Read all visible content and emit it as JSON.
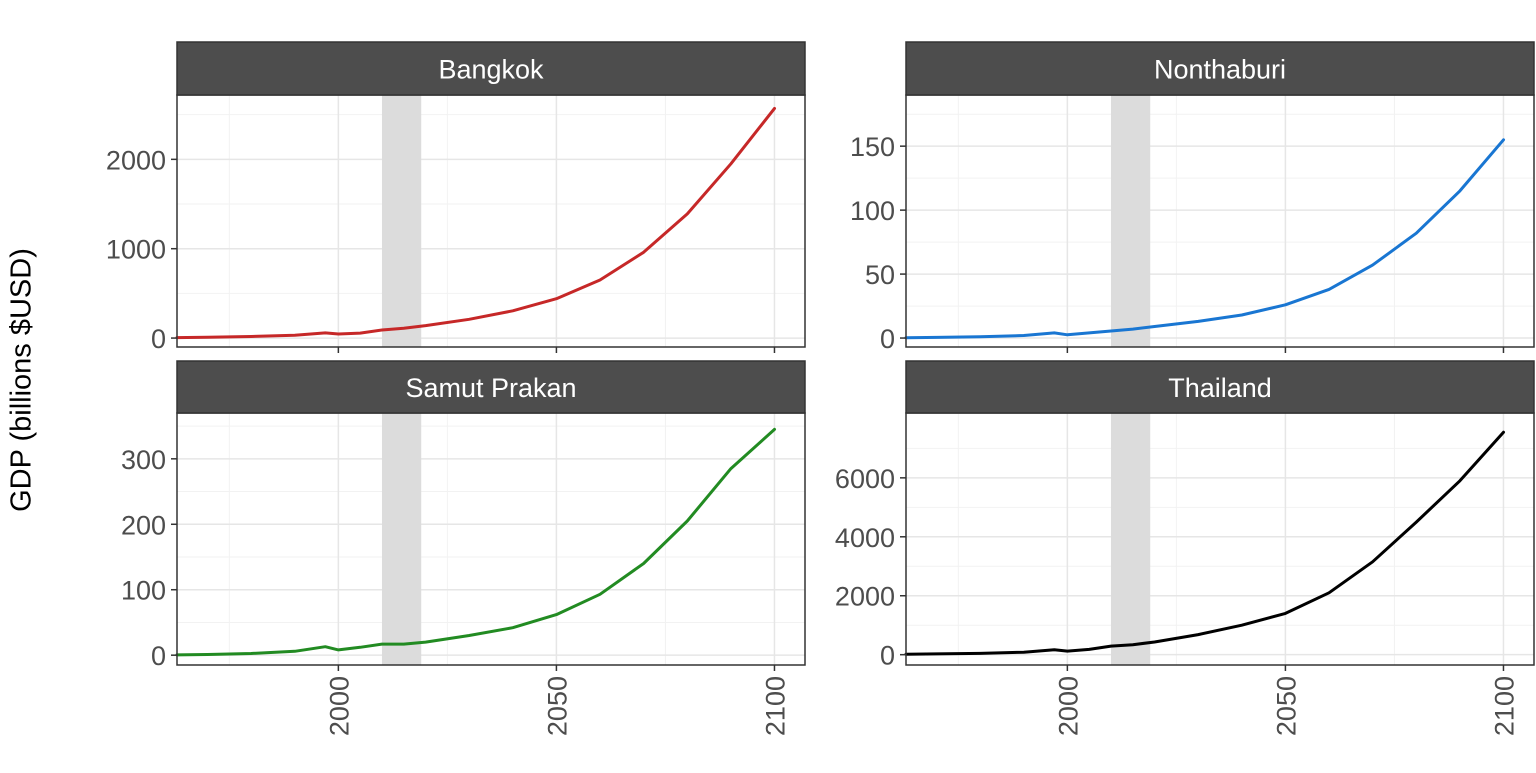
{
  "chart_data": {
    "type": "line",
    "ylabel": "GDP (billions $USD)",
    "xlim": [
      1963,
      2107
    ],
    "x_ticks": [
      2000,
      2050,
      2100
    ],
    "x_tick_labels": [
      "2000",
      "2050",
      "2100"
    ],
    "highlight_band": [
      2010,
      2019
    ],
    "grid": true,
    "facets": [
      {
        "name": "Bangkok",
        "color": "#C62828",
        "ylim": [
          -100,
          2720
        ],
        "y_ticks": [
          0,
          1000,
          2000
        ],
        "y_tick_labels": [
          "0",
          "1000",
          "2000"
        ],
        "series": {
          "x": [
            1963,
            1970,
            1980,
            1990,
            1997,
            2000,
            2005,
            2010,
            2015,
            2020,
            2030,
            2040,
            2050,
            2060,
            2070,
            2080,
            2090,
            2100
          ],
          "values": [
            5,
            9,
            17,
            32,
            58,
            45,
            55,
            90,
            110,
            140,
            210,
            305,
            440,
            650,
            960,
            1390,
            1950,
            2570
          ]
        }
      },
      {
        "name": "Nonthaburi",
        "color": "#1976D2",
        "ylim": [
          -7,
          190
        ],
        "y_ticks": [
          0,
          50,
          100,
          150
        ],
        "y_tick_labels": [
          "0",
          "50",
          "100",
          "150"
        ],
        "series": {
          "x": [
            1963,
            1970,
            1980,
            1990,
            1997,
            2000,
            2005,
            2010,
            2015,
            2020,
            2030,
            2040,
            2050,
            2060,
            2070,
            2080,
            2090,
            2100
          ],
          "values": [
            0.3,
            0.5,
            1,
            2,
            4,
            2.5,
            4,
            5.5,
            7,
            9,
            13,
            18,
            26,
            38,
            57,
            82,
            115,
            155
          ]
        }
      },
      {
        "name": "Samut Prakan",
        "color": "#228B22",
        "ylim": [
          -15,
          370
        ],
        "y_ticks": [
          0,
          100,
          200,
          300
        ],
        "y_tick_labels": [
          "0",
          "100",
          "200",
          "300"
        ],
        "series": {
          "x": [
            1963,
            1970,
            1980,
            1990,
            1997,
            2000,
            2005,
            2010,
            2015,
            2020,
            2030,
            2040,
            2050,
            2060,
            2070,
            2080,
            2090,
            2100
          ],
          "values": [
            0.5,
            1,
            2.5,
            6,
            13,
            8,
            12,
            17,
            17,
            20,
            30,
            42,
            62,
            93,
            140,
            205,
            285,
            345
          ]
        }
      },
      {
        "name": "Thailand",
        "color": "#000000",
        "ylim": [
          -350,
          8200
        ],
        "y_ticks": [
          0,
          2000,
          4000,
          6000
        ],
        "y_tick_labels": [
          "0",
          "2000",
          "4000",
          "6000"
        ],
        "series": {
          "x": [
            1963,
            1970,
            1980,
            1990,
            1997,
            2000,
            2005,
            2010,
            2015,
            2020,
            2030,
            2040,
            2050,
            2060,
            2070,
            2080,
            2090,
            2100
          ],
          "values": [
            15,
            25,
            45,
            85,
            170,
            120,
            180,
            290,
            340,
            430,
            680,
            1000,
            1400,
            2100,
            3150,
            4500,
            5900,
            7550
          ]
        }
      }
    ]
  }
}
